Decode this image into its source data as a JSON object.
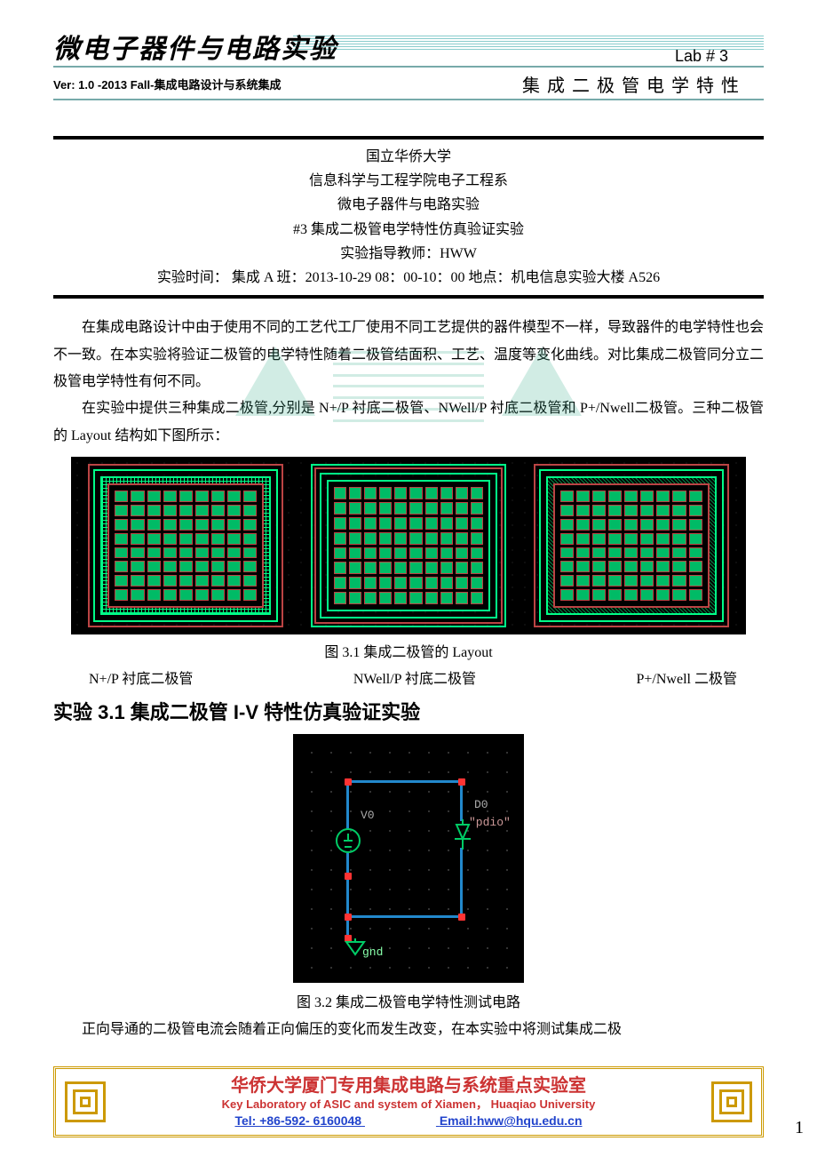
{
  "header": {
    "course_title": "微电子器件与电路实验",
    "lab_num": "Lab # 3",
    "version_en": "Ver: 1.0 -2013 Fall-",
    "version_cn": "集成电路设计与系统集成",
    "lab_title": "集成二极管电学特性"
  },
  "meta": {
    "university": "国立华侨大学",
    "department": "信息科学与工程学院电子工程系",
    "course": "微电子器件与电路实验",
    "experiment": "#3 集成二极管电学特性仿真验证实验",
    "instructor": "实验指导教师：HWW",
    "schedule": "实验时间： 集成 A 班：2013-10-29 08：00-10：00 地点：机电信息实验大楼 A526"
  },
  "paragraphs": {
    "p1": "在集成电路设计中由于使用不同的工艺代工厂使用不同工艺提供的器件模型不一样，导致器件的电学特性也会不一致。在本实验将验证二极管的电学特性随着二极管结面积、工艺、温度等变化曲线。对比集成二极管同分立二极管电学特性有何不同。",
    "p2": "在实验中提供三种集成二极管,分别是 N+/P 衬底二极管、NWell/P 衬底二极管和 P+/Nwell二极管。三种二极管的 Layout 结构如下图所示：",
    "p3": "正向导通的二极管电流会随着正向偏压的变化而发生改变，在本实验中将测试集成二极"
  },
  "figures": {
    "fig1_caption": "图 3.1 集成二极管的 Layout",
    "fig1_labels": {
      "a": "N+/P 衬底二极管",
      "b": "NWell/P 衬底二极管",
      "c": "P+/Nwell 二极管"
    },
    "fig2_caption": "图 3.2 集成二极管电学特性测试电路",
    "fig2_labels": {
      "v0": "V0",
      "d0": "D0",
      "model": "\"pdio\"",
      "gnd": "gnd"
    }
  },
  "section": {
    "h1": "实验 3.1 集成二极管 I-V 特性仿真验证实验"
  },
  "footer": {
    "line1": "华侨大学厦门专用集成电路与系统重点实验室",
    "line2": "Key Laboratory of ASIC and system of Xiamen， Huaqiao University",
    "tel": "Tel: +86-592- 6160048",
    "email": "Email:hww@hqu.edu.cn",
    "page": "1"
  },
  "colors": {
    "accent_teal": "#7fbbbb",
    "layout_green": "#00ff88",
    "layout_red": "#bb4444",
    "wire_blue": "#2288cc",
    "node_red": "#ff3333",
    "footer_gold": "#cc9900",
    "footer_red": "#cc3333",
    "footer_blue": "#2244cc"
  }
}
